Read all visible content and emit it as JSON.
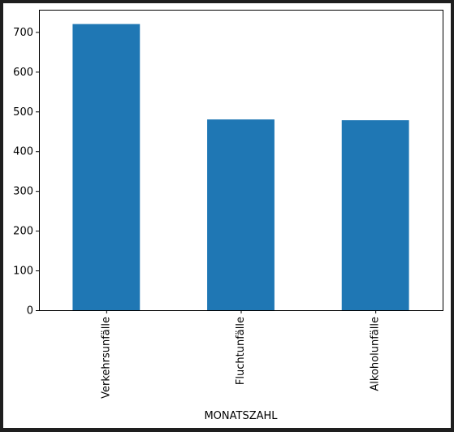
{
  "chart_data": {
    "type": "bar",
    "categories": [
      "Verkehrsunfälle",
      "Fluchtunfälle",
      "Alkoholunfälle"
    ],
    "values": [
      720,
      480,
      478
    ],
    "xlabel": "MONATSZAHL",
    "ylabel": "",
    "ylim": [
      0,
      756
    ],
    "yticks": [
      0,
      100,
      200,
      300,
      400,
      500,
      600,
      700
    ],
    "grid": false,
    "bar_color": "#1f77b4"
  }
}
